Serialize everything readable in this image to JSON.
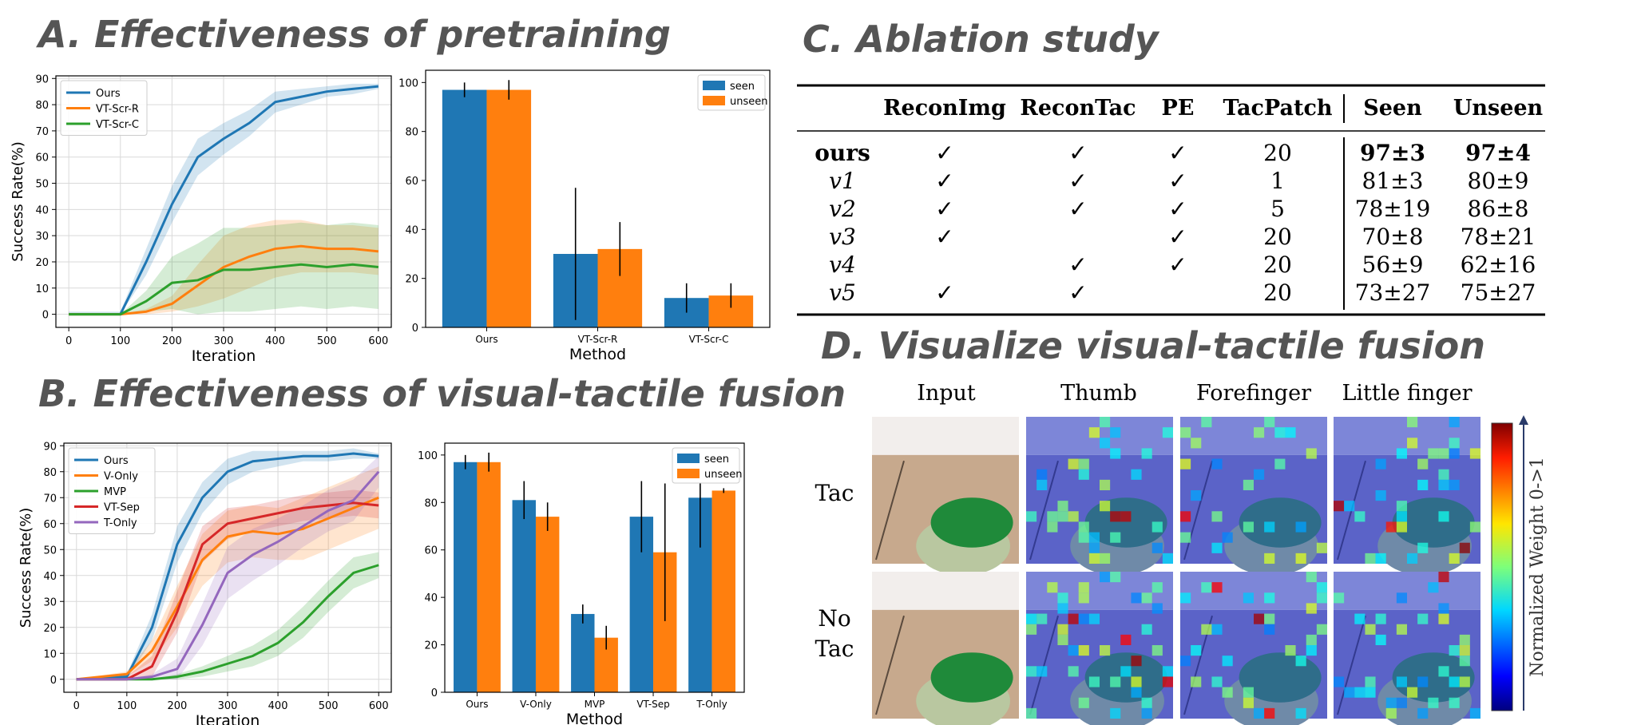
{
  "panels": {
    "a_title": "A. Effectiveness of pretraining",
    "b_title": "B. Effectiveness of visual-tactile fusion",
    "c_title": "C. Ablation study",
    "d_title": "D. Visualize visual-tactile fusion"
  },
  "colors": {
    "blue": "#1f77b4",
    "orange": "#ff7f0e",
    "green": "#2ca02c",
    "red": "#d62728",
    "purple": "#9467bd"
  },
  "chart_data": [
    {
      "id": "A-line",
      "type": "line",
      "xlabel": "Iteration",
      "ylabel": "Success Rate(%)",
      "xlim": [
        -25,
        625
      ],
      "ylim": [
        -5,
        91
      ],
      "xticks": [
        "0",
        "100",
        "200",
        "300",
        "400",
        "500",
        "600"
      ],
      "yticks": [
        "0",
        "10",
        "20",
        "30",
        "40",
        "50",
        "60",
        "70",
        "80",
        "90"
      ],
      "legend_position": "upper-left",
      "grid": true,
      "x": [
        0,
        100,
        150,
        200,
        250,
        300,
        350,
        400,
        450,
        500,
        550,
        600
      ],
      "series": [
        {
          "name": "Ours",
          "color": "#1f77b4",
          "values": [
            0,
            0,
            20,
            42,
            60,
            67,
            73,
            81,
            83,
            85,
            86,
            87
          ],
          "band": [
            1,
            1,
            5,
            7,
            7,
            6,
            5,
            4,
            3,
            2,
            2,
            1
          ]
        },
        {
          "name": "VT-Scr-R",
          "color": "#ff7f0e",
          "values": [
            0,
            0,
            1,
            4,
            11,
            18,
            22,
            25,
            26,
            25,
            25,
            24
          ],
          "band": [
            0,
            0,
            1,
            3,
            8,
            12,
            12,
            11,
            10,
            9,
            9,
            9
          ]
        },
        {
          "name": "VT-Scr-C",
          "color": "#2ca02c",
          "values": [
            0,
            0,
            5,
            12,
            13,
            17,
            17,
            18,
            19,
            18,
            19,
            18
          ],
          "band": [
            0,
            0,
            4,
            10,
            14,
            16,
            16,
            16,
            16,
            16,
            16,
            16
          ]
        }
      ]
    },
    {
      "id": "A-bar",
      "type": "bar",
      "xlabel": "Method",
      "ylabel": "",
      "ylim": [
        0,
        105
      ],
      "yticks": [
        "0",
        "20",
        "40",
        "60",
        "80",
        "100"
      ],
      "categories": [
        "Ours",
        "VT-Scr-R",
        "VT-Scr-C"
      ],
      "legend_position": "upper-right",
      "series": [
        {
          "name": "seen",
          "color": "#1f77b4",
          "values": [
            97,
            30,
            12
          ],
          "err": [
            3,
            27,
            6
          ]
        },
        {
          "name": "unseen",
          "color": "#ff7f0e",
          "values": [
            97,
            32,
            13
          ],
          "err": [
            4,
            11,
            5
          ]
        }
      ]
    },
    {
      "id": "B-line",
      "type": "line",
      "xlabel": "Iteration",
      "ylabel": "Success Rate(%)",
      "xlim": [
        -25,
        625
      ],
      "ylim": [
        -5,
        91
      ],
      "xticks": [
        "0",
        "100",
        "200",
        "300",
        "400",
        "500",
        "600"
      ],
      "yticks": [
        "0",
        "10",
        "20",
        "30",
        "40",
        "50",
        "60",
        "70",
        "80",
        "90"
      ],
      "legend_position": "upper-left",
      "grid": true,
      "x": [
        0,
        100,
        150,
        200,
        250,
        300,
        350,
        400,
        450,
        500,
        550,
        600
      ],
      "series": [
        {
          "name": "Ours",
          "color": "#1f77b4",
          "values": [
            0,
            1,
            20,
            52,
            70,
            80,
            84,
            85,
            86,
            86,
            87,
            86
          ],
          "band": [
            0,
            1,
            5,
            7,
            6,
            5,
            4,
            3,
            2,
            2,
            2,
            1
          ]
        },
        {
          "name": "V-Only",
          "color": "#ff7f0e",
          "values": [
            0,
            2,
            11,
            28,
            46,
            55,
            57,
            56,
            58,
            62,
            66,
            70
          ],
          "band": [
            0,
            1,
            4,
            8,
            10,
            10,
            10,
            10,
            12,
            12,
            12,
            12
          ]
        },
        {
          "name": "MVP",
          "color": "#2ca02c",
          "values": [
            0,
            0,
            0,
            1,
            3,
            6,
            9,
            14,
            22,
            32,
            41,
            44
          ],
          "band": [
            0,
            0,
            0,
            1,
            2,
            3,
            4,
            5,
            6,
            6,
            6,
            5
          ]
        },
        {
          "name": "VT-Sep",
          "color": "#d62728",
          "values": [
            0,
            0,
            5,
            26,
            52,
            60,
            62,
            64,
            66,
            67,
            68,
            67
          ],
          "band": [
            0,
            1,
            4,
            8,
            7,
            6,
            5,
            5,
            5,
            5,
            5,
            5
          ]
        },
        {
          "name": "T-Only",
          "color": "#9467bd",
          "values": [
            0,
            0,
            1,
            4,
            21,
            41,
            48,
            53,
            59,
            65,
            69,
            80
          ],
          "band": [
            0,
            0,
            1,
            4,
            8,
            10,
            10,
            9,
            8,
            8,
            8,
            6
          ]
        }
      ]
    },
    {
      "id": "B-bar",
      "type": "bar",
      "xlabel": "Method",
      "ylabel": "",
      "ylim": [
        0,
        105
      ],
      "yticks": [
        "0",
        "20",
        "40",
        "60",
        "80",
        "100"
      ],
      "categories": [
        "Ours",
        "V-Only",
        "MVP",
        "VT-Sep",
        "T-Only"
      ],
      "legend_position": "upper-right",
      "series": [
        {
          "name": "seen",
          "color": "#1f77b4",
          "values": [
            97,
            81,
            33,
            74,
            82
          ],
          "err": [
            3,
            8,
            4,
            15,
            21
          ]
        },
        {
          "name": "unseen",
          "color": "#ff7f0e",
          "values": [
            97,
            74,
            23,
            59,
            85
          ],
          "err": [
            4,
            6,
            5,
            29,
            1
          ]
        }
      ]
    },
    {
      "id": "C-table",
      "type": "table",
      "columns": [
        "",
        "ReconImg",
        "ReconTac",
        "PE",
        "TacPatch",
        "Seen",
        "Unseen"
      ],
      "rows": [
        {
          "name": "ours",
          "reconimg": "✓",
          "recontac": "✓",
          "pe": "✓",
          "tacpatch": "20",
          "seen": "97±3",
          "unseen": "97±4",
          "bold": true
        },
        {
          "name": "v1",
          "reconimg": "✓",
          "recontac": "✓",
          "pe": "✓",
          "tacpatch": "1",
          "seen": "81±3",
          "unseen": "80±9"
        },
        {
          "name": "v2",
          "reconimg": "✓",
          "recontac": "✓",
          "pe": "✓",
          "tacpatch": "5",
          "seen": "78±19",
          "unseen": "86±8"
        },
        {
          "name": "v3",
          "reconimg": "✓",
          "recontac": "",
          "pe": "✓",
          "tacpatch": "20",
          "seen": "70±8",
          "unseen": "78±21"
        },
        {
          "name": "v4",
          "reconimg": "",
          "recontac": "✓",
          "pe": "✓",
          "tacpatch": "20",
          "seen": "56±9",
          "unseen": "62±16"
        },
        {
          "name": "v5",
          "reconimg": "✓",
          "recontac": "✓",
          "pe": "",
          "tacpatch": "20",
          "seen": "73±27",
          "unseen": "75±27"
        }
      ]
    },
    {
      "id": "D-heatmaps",
      "type": "heatmap",
      "columns": [
        "Input",
        "Thumb",
        "Forefinger",
        "Little finger"
      ],
      "rows": [
        "Tac",
        "No\nTac"
      ],
      "colorbar_label": "Normalized Weight 0->1"
    }
  ]
}
